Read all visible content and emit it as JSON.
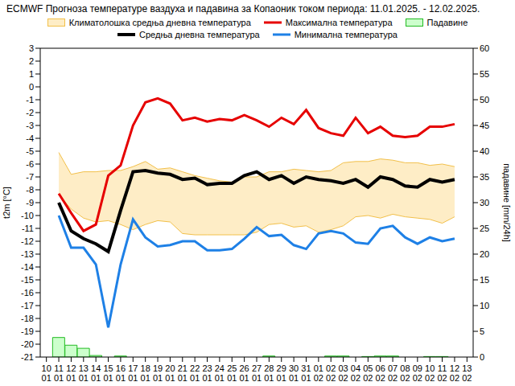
{
  "chart_data": {
    "type": "line",
    "title": "ECMWF Прогноза температуре ваздуха и падавина за Копаоник током периода: 11.01.2025. - 12.02.2025.",
    "y_label": "t2m [°C]",
    "y2_label": "падавине [mm/24h]",
    "categories": [
      "10\n01",
      "11\n01",
      "12\n01",
      "13\n01",
      "14\n01",
      "15\n01",
      "16\n01",
      "17\n01",
      "18\n01",
      "19\n01",
      "20\n01",
      "21\n01",
      "22\n01",
      "23\n01",
      "24\n01",
      "25\n01",
      "26\n01",
      "27\n01",
      "28\n01",
      "29\n01",
      "30\n01",
      "31\n01",
      "01\n02",
      "02\n02",
      "03\n02",
      "04\n02",
      "05\n02",
      "06\n02",
      "07\n02",
      "08\n02",
      "09\n02",
      "10\n02",
      "11\n02",
      "12\n02",
      "13\n02"
    ],
    "ylim": [
      -21,
      3
    ],
    "yticks": [
      -21,
      -20,
      -19,
      -18,
      -17,
      -16,
      -15,
      -14,
      -13,
      -12,
      -11,
      -10,
      -9,
      -8,
      -7,
      -6,
      -5,
      -4,
      -3,
      -2,
      -1,
      0,
      1,
      2,
      3
    ],
    "y2lim": [
      0,
      60
    ],
    "y2ticks": [
      0,
      5,
      10,
      15,
      20,
      25,
      30,
      35,
      40,
      45,
      50,
      55,
      60
    ],
    "grid": false,
    "legend": "top",
    "series": [
      {
        "name": "Климатолошка средња дневна температура",
        "type": "range_area",
        "color": "#feedc6",
        "values": [
          null,
          [
            -8.4,
            -5.1
          ],
          [
            -9.5,
            -6.8
          ],
          [
            -10.2,
            -6.6
          ],
          [
            -10.5,
            -6.6
          ],
          [
            -10.4,
            -6.5
          ],
          [
            -10.7,
            -6.5
          ],
          [
            -11.1,
            -6.2
          ],
          [
            -10.7,
            -5.8
          ],
          [
            -10.4,
            -6.4
          ],
          [
            -10.5,
            -6.3
          ],
          [
            -11.4,
            -6.6
          ],
          [
            -11.5,
            -6.9
          ],
          [
            -11.5,
            -7.1
          ],
          [
            -11.5,
            -7.3
          ],
          [
            -11.5,
            -7.4
          ],
          [
            -11.5,
            -7.0
          ],
          [
            -11.3,
            -7.0
          ],
          [
            -10.7,
            -6.6
          ],
          [
            -10.6,
            -6.6
          ],
          [
            -10.9,
            -6.4
          ],
          [
            -10.8,
            -6.5
          ],
          [
            -11.3,
            -6.6
          ],
          [
            -11.1,
            -6.5
          ],
          [
            -10.8,
            -5.9
          ],
          [
            -10.1,
            -5.8
          ],
          [
            -10.0,
            -5.8
          ],
          [
            -10.2,
            -5.6
          ],
          [
            -9.9,
            -5.7
          ],
          [
            -10.1,
            -5.9
          ],
          [
            -10.2,
            -5.9
          ],
          [
            -10.3,
            -6.1
          ],
          [
            -10.6,
            -6.0
          ],
          [
            -10.1,
            -6.2
          ],
          null
        ]
      },
      {
        "name": "Максимална температура",
        "type": "line",
        "color": "#e60000",
        "values": [
          null,
          -8.3,
          -9.8,
          -11.2,
          -10.7,
          -6.9,
          -6.1,
          -3.0,
          -1.2,
          -0.9,
          -1.3,
          -2.6,
          -2.4,
          -2.7,
          -2.5,
          -2.6,
          -2.2,
          -2.6,
          -3.1,
          -2.4,
          -2.9,
          -1.8,
          -3.2,
          -3.6,
          -3.8,
          -2.4,
          -3.6,
          -3.1,
          -3.8,
          -3.9,
          -3.8,
          -3.1,
          -3.1,
          -2.9,
          null
        ]
      },
      {
        "name": "Падавине",
        "type": "bar",
        "axis": "y2",
        "color": "#ccffcc",
        "values": [
          null,
          3.8,
          2.3,
          1.7,
          0.3,
          0,
          0.2,
          0,
          0,
          0,
          0,
          0,
          0,
          0,
          0,
          0,
          0,
          0,
          0.2,
          0,
          0,
          0,
          0,
          0.2,
          0.2,
          0,
          0.1,
          0.2,
          0.2,
          0,
          0,
          0.1,
          0.1,
          0,
          null
        ]
      },
      {
        "name": "Средња дневна температура",
        "type": "line",
        "color": "#000000",
        "values": [
          null,
          -9.0,
          -11.2,
          -11.8,
          -12.2,
          -12.8,
          -9.6,
          -6.6,
          -6.5,
          -6.7,
          -6.8,
          -7.2,
          -7.1,
          -7.6,
          -7.5,
          -7.5,
          -6.9,
          -6.6,
          -7.2,
          -6.9,
          -7.5,
          -7.0,
          -7.2,
          -7.3,
          -7.5,
          -7.2,
          -7.8,
          -7.0,
          -7.2,
          -7.7,
          -7.8,
          -7.2,
          -7.4,
          -7.2,
          null
        ]
      },
      {
        "name": "Минимална температура",
        "type": "line",
        "color": "#1e80e6",
        "values": [
          null,
          -10.0,
          -12.5,
          -12.5,
          -13.8,
          -18.7,
          -13.8,
          -10.3,
          -11.7,
          -12.4,
          -12.3,
          -12.0,
          -12.0,
          -12.7,
          -12.7,
          -12.6,
          -11.8,
          -10.9,
          -11.6,
          -11.5,
          -12.3,
          -12.6,
          -11.4,
          -11.2,
          -11.4,
          -12.1,
          -12.2,
          -11.0,
          -10.8,
          -11.7,
          -12.2,
          -11.7,
          -12.0,
          -11.8,
          null
        ]
      }
    ]
  }
}
